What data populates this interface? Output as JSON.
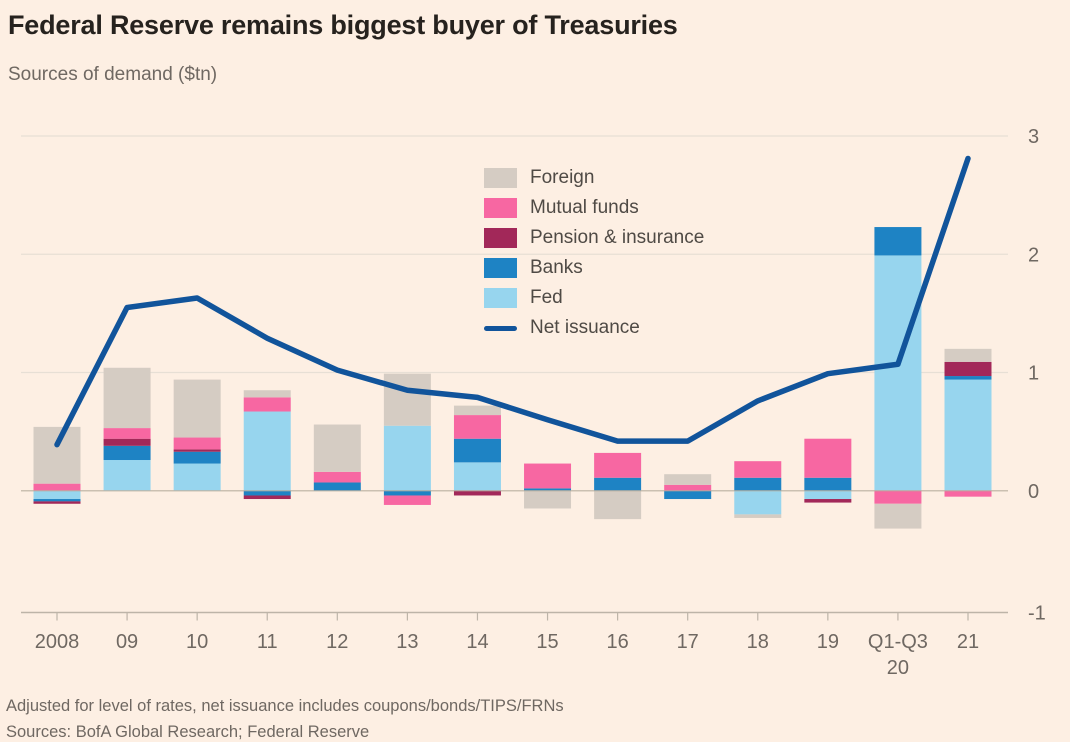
{
  "colors": {
    "background": "#fdefe3",
    "title_text": "#26221e",
    "muted_text": "#6f6862",
    "legend_text": "#4f4a45",
    "gridline": "#e7dfd5",
    "zero_line": "#b7ab99",
    "axis_line": "#bdb4a8"
  },
  "footer": {
    "note": "Adjusted for level of rates, net issuance includes coupons/bonds/TIPS/FRNs",
    "sources": "Sources: BofA Global Research; Federal Reserve"
  },
  "chart_data": {
    "type": "bar",
    "subtype": "stacked-bar-with-line",
    "title": "Federal Reserve remains biggest buyer of Treasuries",
    "subtitle": "Sources of demand ($tn)",
    "unit": "$tn",
    "ylim": [
      -1,
      3
    ],
    "yticks": [
      3,
      2,
      1,
      0,
      -1
    ],
    "grid": "horizontal",
    "legend_position": "upper-center-inside",
    "categories": [
      "2008",
      "09",
      "10",
      "11",
      "12",
      "13",
      "14",
      "15",
      "16",
      "17",
      "18",
      "19",
      "Q1-Q3",
      "21"
    ],
    "category_sublabels": [
      "",
      "",
      "",
      "",
      "",
      "",
      "",
      "",
      "",
      "",
      "",
      "",
      "20",
      ""
    ],
    "colors": {
      "foreign": "#d5ccc3",
      "mutual": "#f767a2",
      "pension": "#a22859",
      "banks": "#1e83c4",
      "fed": "#97d5ee",
      "net_issuance": "#11549b"
    },
    "series": [
      {
        "name": "Fed",
        "color_key": "fed",
        "values": [
          -0.07,
          0.26,
          0.23,
          0.67,
          0.0,
          0.55,
          0.24,
          0.0,
          0.0,
          0.0,
          -0.2,
          -0.07,
          1.99,
          0.94
        ]
      },
      {
        "name": "Banks",
        "color_key": "banks",
        "values": [
          -0.02,
          0.12,
          0.1,
          -0.04,
          0.07,
          -0.04,
          0.2,
          0.02,
          0.11,
          -0.07,
          0.11,
          0.11,
          0.24,
          0.03
        ]
      },
      {
        "name": "Pension & insurance",
        "color_key": "pension",
        "values": [
          -0.02,
          0.06,
          0.02,
          -0.03,
          0.0,
          0.0,
          -0.04,
          0.0,
          0.0,
          0.0,
          0.0,
          -0.03,
          0.0,
          0.12
        ]
      },
      {
        "name": "Mutual funds",
        "color_key": "mutual",
        "values": [
          0.06,
          0.09,
          0.1,
          0.12,
          0.09,
          -0.08,
          0.2,
          0.21,
          0.21,
          0.05,
          0.14,
          0.33,
          -0.11,
          -0.05
        ]
      },
      {
        "name": "Foreign",
        "color_key": "foreign",
        "values": [
          0.48,
          0.51,
          0.49,
          0.06,
          0.4,
          0.44,
          0.08,
          -0.15,
          -0.24,
          0.09,
          -0.03,
          0.0,
          -0.21,
          0.11
        ]
      }
    ],
    "line_series": {
      "name": "Net issuance",
      "color_key": "net_issuance",
      "values": [
        0.39,
        1.55,
        1.63,
        1.29,
        1.02,
        0.85,
        0.79,
        0.6,
        0.42,
        0.42,
        0.76,
        0.99,
        1.07,
        2.81
      ]
    },
    "legend": [
      {
        "label": "Foreign",
        "color_key": "foreign",
        "swatch": "rect"
      },
      {
        "label": "Mutual funds",
        "color_key": "mutual",
        "swatch": "rect"
      },
      {
        "label": "Pension & insurance",
        "color_key": "pension",
        "swatch": "rect"
      },
      {
        "label": "Banks",
        "color_key": "banks",
        "swatch": "rect"
      },
      {
        "label": "Fed",
        "color_key": "fed",
        "swatch": "rect"
      },
      {
        "label": "Net issuance",
        "color_key": "net_issuance",
        "swatch": "line"
      }
    ]
  }
}
